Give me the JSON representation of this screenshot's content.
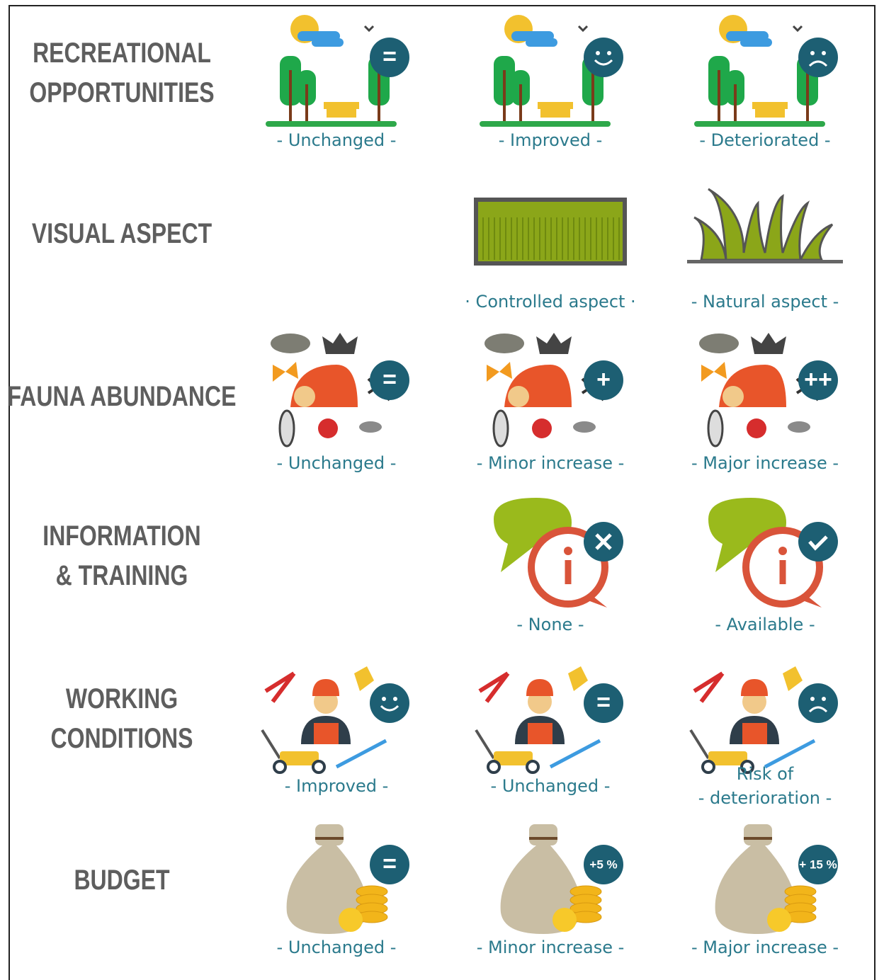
{
  "rows": [
    {
      "label": "RECREATIONAL\nOPPORTUNITIES",
      "levels": [
        {
          "label": "- Unchanged -",
          "badge": "="
        },
        {
          "label": "- Improved -"
        },
        {
          "label": "- Deteriorated -"
        }
      ]
    },
    {
      "label": "VISUAL ASPECT",
      "levels": [
        null,
        {
          "label": "· Controlled aspect ·"
        },
        {
          "label": "- Natural aspect -"
        }
      ]
    },
    {
      "label": "FAUNA ABUNDANCE",
      "levels": [
        {
          "label": "- Unchanged -",
          "badge": "="
        },
        {
          "label": "- Minor increase -",
          "badge": "+"
        },
        {
          "label": "- Major increase -",
          "badge": "++"
        }
      ]
    },
    {
      "label": "INFORMATION\n& TRAINING",
      "levels": [
        null,
        {
          "label": "- None -"
        },
        {
          "label": "- Available -"
        }
      ]
    },
    {
      "label": "WORKING\nCONDITIONS",
      "levels": [
        {
          "label": "- Improved -"
        },
        {
          "label": "- Unchanged -",
          "badge": "="
        },
        {
          "label": "Risk of\n- deterioration -"
        }
      ]
    },
    {
      "label": "BUDGET",
      "levels": [
        {
          "label": "- Unchanged -",
          "badge": "="
        },
        {
          "label": "- Minor increase -",
          "badge": "+5 %"
        },
        {
          "label": "- Major increase -",
          "badge": "+ 15 %"
        }
      ]
    }
  ]
}
